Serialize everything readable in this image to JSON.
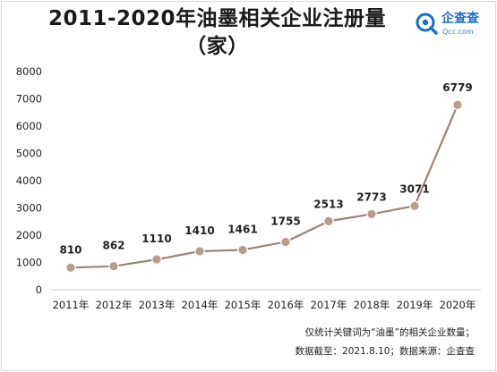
{
  "title_line1": "2011-2020年油墨相关企业注册量",
  "title_line2": "（家）",
  "brand": {
    "name": "企查查",
    "domain": "Qcc.com",
    "logo_icon": "magnifier-q-icon",
    "color": "#1e6ec8"
  },
  "chart_data": {
    "type": "line",
    "categories": [
      "2011年",
      "2012年",
      "2013年",
      "2014年",
      "2015年",
      "2016年",
      "2017年",
      "2018年",
      "2019年",
      "2020年"
    ],
    "series": [
      {
        "values": [
          810,
          862,
          1110,
          1410,
          1461,
          1755,
          2513,
          2773,
          3071,
          6779
        ]
      }
    ],
    "data_labels": [
      "810",
      "862",
      "1110",
      "1410",
      "1461",
      "1755",
      "2513",
      "2773",
      "3071",
      "6779"
    ],
    "yticks": [
      "0",
      "1000",
      "2000",
      "3000",
      "4000",
      "5000",
      "6000",
      "7000",
      "8000"
    ],
    "ylim": [
      0,
      8000
    ],
    "grid": false,
    "line_color": "#9b8378",
    "marker_color": "#b89c8e"
  },
  "notes": {
    "line1": "仅统计关键词为“油墨”的相关企业数量；",
    "line2": "数据截至：2021.8.10；数据来源：企查查"
  }
}
